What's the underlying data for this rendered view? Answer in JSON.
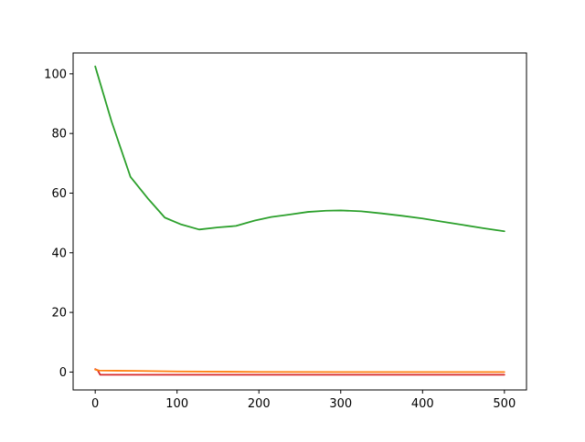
{
  "chart_data": {
    "type": "line",
    "title": "",
    "xlabel": "",
    "ylabel": "",
    "xlim": [
      -27,
      527
    ],
    "ylim": [
      -6,
      107
    ],
    "x_ticks": [
      0,
      100,
      200,
      300,
      400,
      500
    ],
    "y_ticks": [
      0,
      20,
      40,
      60,
      80,
      100
    ],
    "x_tick_labels": [
      "0",
      "100",
      "200",
      "300",
      "400",
      "500"
    ],
    "y_tick_labels": [
      "0",
      "20",
      "40",
      "60",
      "80",
      "100"
    ],
    "grid": false,
    "legend": "none",
    "series": [
      {
        "color": "#2ca02c",
        "x": [
          0,
          20,
          43,
          65,
          85,
          105,
          127,
          150,
          172,
          195,
          215,
          237,
          260,
          282,
          300,
          325,
          350,
          375,
          400,
          425,
          450,
          475,
          500
        ],
        "y": [
          102.5,
          84,
          65.5,
          58,
          51.8,
          49.5,
          47.8,
          48.5,
          49.0,
          50.8,
          52.0,
          52.8,
          53.7,
          54.1,
          54.2,
          53.9,
          53.2,
          52.4,
          51.5,
          50.4,
          49.3,
          48.2,
          47.2
        ]
      },
      {
        "color": "#d62728",
        "x": [
          0,
          3,
          6,
          20,
          100,
          200,
          300,
          400,
          500
        ],
        "y": [
          1.0,
          0.6,
          -0.9,
          -0.9,
          -0.9,
          -0.9,
          -0.9,
          -0.9,
          -0.9
        ]
      },
      {
        "color": "#ff7f0e",
        "x": [
          0,
          5,
          50,
          100,
          200,
          300,
          400,
          500
        ],
        "y": [
          0.8,
          0.5,
          0.4,
          0.2,
          0.05,
          0.0,
          0.0,
          0.0
        ]
      }
    ]
  }
}
